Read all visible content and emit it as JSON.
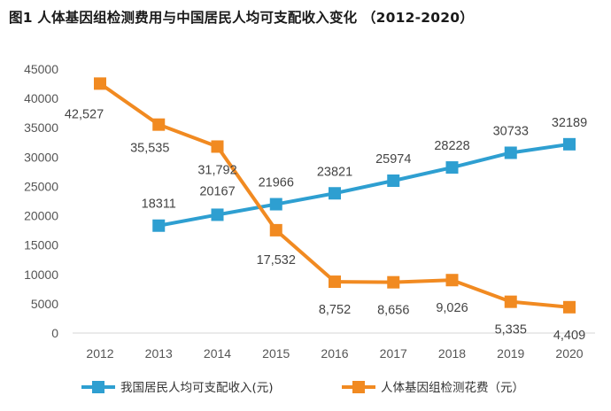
{
  "chart_data": {
    "type": "line",
    "title": "图1 人体基因组检测费用与中国居民人均可支配收入变化 （2012-2020）",
    "categories": [
      "2012",
      "2013",
      "2014",
      "2015",
      "2016",
      "2017",
      "2018",
      "2019",
      "2020"
    ],
    "ylim": [
      0,
      45000
    ],
    "yticks": [
      "0",
      "5000",
      "10000",
      "15000",
      "20000",
      "25000",
      "30000",
      "35000",
      "40000",
      "45000"
    ],
    "grid": false,
    "legend_position": "bottom",
    "series": [
      {
        "name": "我国居民人均可支配收入(元)",
        "color": "#2e9fd1",
        "values": [
          null,
          18311,
          20167,
          21966,
          23821,
          25974,
          28228,
          30733,
          32189
        ],
        "labels": [
          null,
          "18311",
          "20167",
          "21966",
          "23821",
          "25974",
          "28228",
          "30733",
          "32189"
        ]
      },
      {
        "name": "人体基因组检测花费（元）",
        "color": "#f18a21",
        "values": [
          42527,
          35535,
          31792,
          17532,
          8752,
          8656,
          9026,
          5335,
          4409
        ],
        "labels": [
          "42,527",
          "35,535",
          "31,792",
          "17,532",
          "8,752",
          "8,656",
          "9,026",
          "5,335",
          "4,409"
        ]
      }
    ]
  }
}
